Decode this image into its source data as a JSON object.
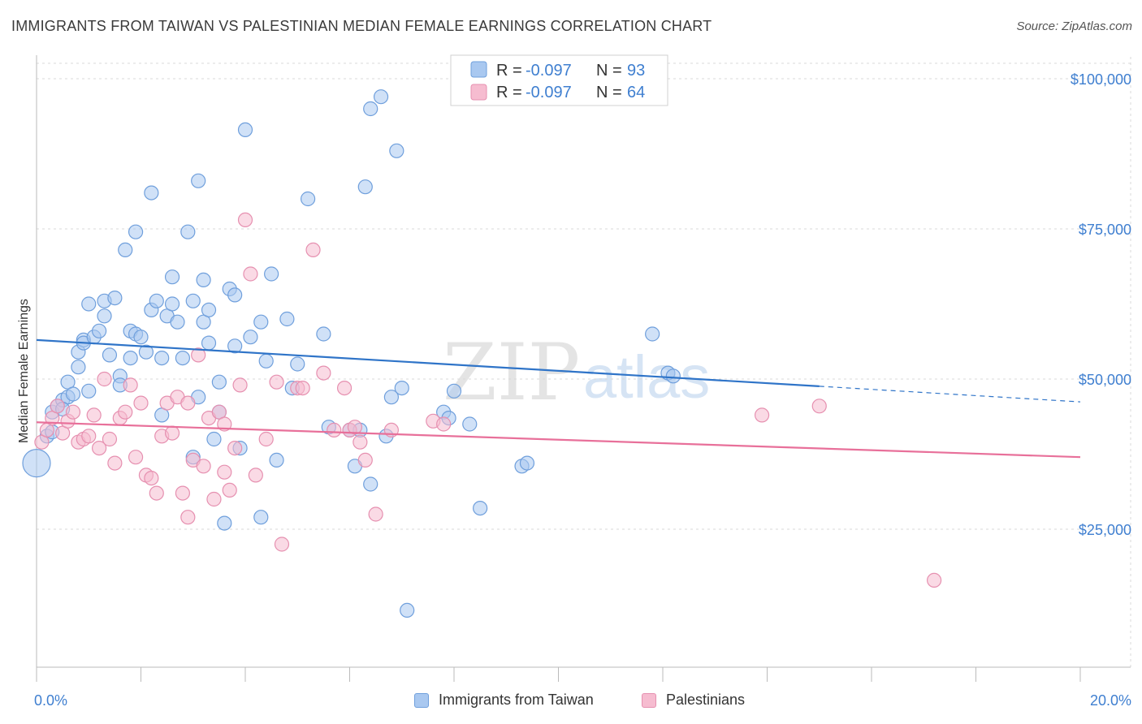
{
  "title": "IMMIGRANTS FROM TAIWAN VS PALESTINIAN MEDIAN FEMALE EARNINGS CORRELATION CHART",
  "source": "Source: ZipAtlas.com",
  "watermark": {
    "zip": "ZIP",
    "atlas": "atlas"
  },
  "colors": {
    "taiwan_fill": "#a9c8f0",
    "taiwan_stroke": "#6f9fdc",
    "taiwan_line": "#2f74c8",
    "pal_fill": "#f6bcd0",
    "pal_stroke": "#e690b0",
    "pal_line": "#e8709a",
    "tick_text": "#3f7fd0",
    "grid": "#d8d8d8"
  },
  "chart_data": {
    "type": "scatter",
    "title": "IMMIGRANTS FROM TAIWAN VS PALESTINIAN MEDIAN FEMALE EARNINGS CORRELATION CHART",
    "xlabel": "",
    "ylabel": "Median Female Earnings",
    "xlim": [
      0,
      20
    ],
    "ylim": [
      0,
      105000
    ],
    "x_tick_labels": [
      "0.0%",
      "20.0%"
    ],
    "y_tick_labels": [
      "$25,000",
      "$50,000",
      "$75,000",
      "$100,000"
    ],
    "y_ticks": [
      25000,
      50000,
      75000,
      100000
    ],
    "grid": true,
    "stats": [
      {
        "r_label": "R = ",
        "r_value": "-0.097",
        "n_label": "N = ",
        "n_value": "93"
      },
      {
        "r_label": "R = ",
        "r_value": "-0.097",
        "n_label": "N = ",
        "n_value": "64"
      }
    ],
    "series": [
      {
        "name": "Immigrants from Taiwan",
        "trend": {
          "x": [
            0,
            15
          ],
          "y": [
            56500,
            48800
          ],
          "dashed_to": [
            20,
            46200
          ]
        },
        "points": [
          [
            0.0,
            36000
          ],
          [
            0.2,
            40500
          ],
          [
            0.3,
            41200
          ],
          [
            0.3,
            44500
          ],
          [
            0.4,
            45500
          ],
          [
            0.5,
            46500
          ],
          [
            0.6,
            47000
          ],
          [
            0.6,
            49500
          ],
          [
            0.7,
            47500
          ],
          [
            0.8,
            52000
          ],
          [
            0.8,
            54500
          ],
          [
            0.9,
            56500
          ],
          [
            0.9,
            56000
          ],
          [
            1.0,
            62500
          ],
          [
            1.1,
            57000
          ],
          [
            1.2,
            58000
          ],
          [
            1.3,
            60500
          ],
          [
            1.3,
            63000
          ],
          [
            1.4,
            54000
          ],
          [
            1.5,
            63500
          ],
          [
            1.6,
            50500
          ],
          [
            1.6,
            49000
          ],
          [
            1.7,
            71500
          ],
          [
            1.8,
            53500
          ],
          [
            1.8,
            58000
          ],
          [
            1.9,
            74500
          ],
          [
            1.9,
            57500
          ],
          [
            2.0,
            57000
          ],
          [
            2.1,
            54500
          ],
          [
            2.2,
            81000
          ],
          [
            2.2,
            61500
          ],
          [
            2.3,
            63000
          ],
          [
            2.4,
            53500
          ],
          [
            2.4,
            44000
          ],
          [
            2.5,
            60500
          ],
          [
            2.6,
            67000
          ],
          [
            2.6,
            62500
          ],
          [
            2.7,
            59500
          ],
          [
            2.8,
            53500
          ],
          [
            2.9,
            74500
          ],
          [
            3.0,
            63000
          ],
          [
            3.0,
            37000
          ],
          [
            3.1,
            83000
          ],
          [
            3.1,
            47000
          ],
          [
            3.2,
            59500
          ],
          [
            3.2,
            66500
          ],
          [
            3.3,
            56000
          ],
          [
            3.3,
            61500
          ],
          [
            3.4,
            40000
          ],
          [
            3.5,
            49500
          ],
          [
            3.5,
            44500
          ],
          [
            3.6,
            26000
          ],
          [
            3.7,
            65000
          ],
          [
            3.8,
            64000
          ],
          [
            3.8,
            55500
          ],
          [
            3.9,
            38500
          ],
          [
            4.0,
            91500
          ],
          [
            4.1,
            57000
          ],
          [
            4.3,
            27000
          ],
          [
            4.3,
            59500
          ],
          [
            4.4,
            53000
          ],
          [
            4.5,
            67500
          ],
          [
            4.6,
            36500
          ],
          [
            4.8,
            60000
          ],
          [
            4.9,
            48500
          ],
          [
            5.0,
            52500
          ],
          [
            5.2,
            80000
          ],
          [
            5.5,
            57500
          ],
          [
            5.6,
            42000
          ],
          [
            6.0,
            41500
          ],
          [
            6.1,
            35500
          ],
          [
            6.2,
            41500
          ],
          [
            6.3,
            82000
          ],
          [
            6.4,
            32500
          ],
          [
            6.4,
            95000
          ],
          [
            6.6,
            97000
          ],
          [
            6.7,
            40500
          ],
          [
            6.8,
            47000
          ],
          [
            6.9,
            88000
          ],
          [
            7.0,
            48500
          ],
          [
            7.1,
            11500
          ],
          [
            7.8,
            44500
          ],
          [
            7.9,
            43500
          ],
          [
            8.0,
            48000
          ],
          [
            8.3,
            42500
          ],
          [
            8.5,
            28500
          ],
          [
            9.3,
            35500
          ],
          [
            9.4,
            36000
          ],
          [
            11.8,
            57500
          ],
          [
            12.1,
            51000
          ],
          [
            12.2,
            50500
          ],
          [
            0.5,
            45000
          ],
          [
            1.0,
            48000
          ]
        ]
      },
      {
        "name": "Palestinians",
        "trend": {
          "x": [
            0,
            20
          ],
          "y": [
            42800,
            37000
          ]
        },
        "points": [
          [
            0.1,
            39500
          ],
          [
            0.2,
            41500
          ],
          [
            0.3,
            43500
          ],
          [
            0.4,
            45500
          ],
          [
            0.5,
            41000
          ],
          [
            0.6,
            43000
          ],
          [
            0.7,
            44500
          ],
          [
            0.8,
            39500
          ],
          [
            0.9,
            40000
          ],
          [
            1.0,
            40500
          ],
          [
            1.1,
            44000
          ],
          [
            1.2,
            38500
          ],
          [
            1.3,
            50000
          ],
          [
            1.4,
            40000
          ],
          [
            1.5,
            36000
          ],
          [
            1.6,
            43500
          ],
          [
            1.7,
            44500
          ],
          [
            1.8,
            49000
          ],
          [
            1.9,
            37000
          ],
          [
            2.0,
            46000
          ],
          [
            2.1,
            34000
          ],
          [
            2.2,
            33500
          ],
          [
            2.3,
            31000
          ],
          [
            2.4,
            40500
          ],
          [
            2.5,
            46000
          ],
          [
            2.6,
            41000
          ],
          [
            2.7,
            47000
          ],
          [
            2.8,
            31000
          ],
          [
            2.9,
            27000
          ],
          [
            3.0,
            36500
          ],
          [
            3.1,
            54000
          ],
          [
            3.2,
            35500
          ],
          [
            3.3,
            43500
          ],
          [
            3.4,
            30000
          ],
          [
            3.5,
            44500
          ],
          [
            3.6,
            34500
          ],
          [
            3.6,
            42500
          ],
          [
            3.7,
            31500
          ],
          [
            3.8,
            38500
          ],
          [
            3.9,
            49000
          ],
          [
            4.0,
            76500
          ],
          [
            4.1,
            67500
          ],
          [
            4.2,
            34000
          ],
          [
            4.4,
            40000
          ],
          [
            4.6,
            49500
          ],
          [
            4.7,
            22500
          ],
          [
            5.0,
            48500
          ],
          [
            5.1,
            48500
          ],
          [
            5.3,
            71500
          ],
          [
            5.5,
            51000
          ],
          [
            5.7,
            41500
          ],
          [
            5.9,
            48500
          ],
          [
            6.0,
            41500
          ],
          [
            6.2,
            39500
          ],
          [
            6.3,
            36500
          ],
          [
            6.5,
            27500
          ],
          [
            6.8,
            41500
          ],
          [
            7.6,
            43000
          ],
          [
            7.8,
            42500
          ],
          [
            13.9,
            44000
          ],
          [
            15.0,
            45500
          ],
          [
            17.2,
            16500
          ],
          [
            6.1,
            42000
          ],
          [
            2.9,
            46000
          ]
        ]
      }
    ]
  },
  "legend": {
    "taiwan": "Immigrants from Taiwan",
    "palestinians": "Palestinians"
  }
}
